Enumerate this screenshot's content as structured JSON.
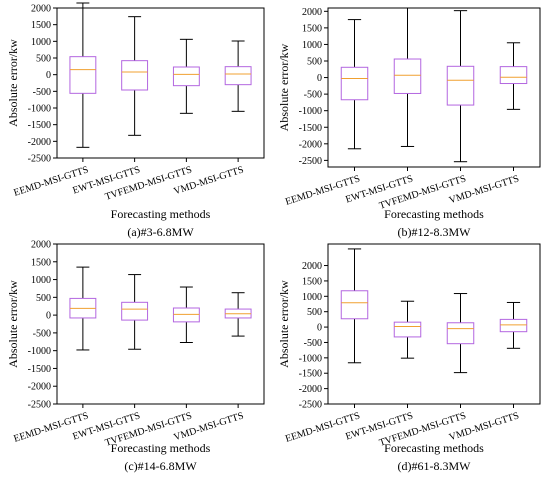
{
  "chart_data": [
    {
      "type": "box",
      "caption": "(a)#3-6.8MW",
      "xlabel": "Forecasting methods",
      "ylabel": "Absolute error/kw",
      "ylim": [
        -2500,
        2000
      ],
      "yticks": [
        2000,
        1500,
        1000,
        500,
        0,
        -500,
        -1000,
        -1500,
        -2000,
        -2500
      ],
      "categories": [
        "EEMD-MSI-GTTS",
        "EWT-MSI-GTTS",
        "TVFEMD-MSI-GTTS",
        "VMD-MSI-GTTS"
      ],
      "boxes": [
        {
          "whisker_low": -2180,
          "q1": -560,
          "median": 150,
          "q3": 540,
          "whisker_high": 2150
        },
        {
          "whisker_low": -1820,
          "q1": -460,
          "median": 80,
          "q3": 420,
          "whisker_high": 1740
        },
        {
          "whisker_low": -1160,
          "q1": -330,
          "median": 10,
          "q3": 230,
          "whisker_high": 1060
        },
        {
          "whisker_low": -1100,
          "q1": -300,
          "median": 20,
          "q3": 240,
          "whisker_high": 1010
        }
      ]
    },
    {
      "type": "box",
      "caption": "(b)#12-8.3MW",
      "xlabel": "Forecasting methods",
      "ylabel": "Absolute error/kw",
      "ylim": [
        -2700,
        2100
      ],
      "yticks": [
        2000,
        1500,
        1000,
        500,
        0,
        -500,
        -1000,
        -1500,
        -2000,
        -2500
      ],
      "categories": [
        "EEMD-MSI-GTTS",
        "EWT-MSI-GTTS",
        "TVFEMD-MSI-GTTS",
        "VMD-MSI-GTTS"
      ],
      "boxes": [
        {
          "whisker_low": -2150,
          "q1": -670,
          "median": -30,
          "q3": 310,
          "whisker_high": 1750
        },
        {
          "whisker_low": -2080,
          "q1": -480,
          "median": 70,
          "q3": 560,
          "whisker_high": 2100
        },
        {
          "whisker_low": -2540,
          "q1": -830,
          "median": -80,
          "q3": 340,
          "whisker_high": 2020
        },
        {
          "whisker_low": -960,
          "q1": -180,
          "median": 10,
          "q3": 330,
          "whisker_high": 1050
        }
      ]
    },
    {
      "type": "box",
      "caption": "(c)#14-6.8MW",
      "xlabel": "Forecasting methods",
      "ylabel": "Absolute error/kw",
      "ylim": [
        -2500,
        2000
      ],
      "yticks": [
        2000,
        1500,
        1000,
        500,
        0,
        -500,
        -1000,
        -1500,
        -2000,
        -2500
      ],
      "categories": [
        "EEMD-MSI-GTTS",
        "EWT-MSI-GTTS",
        "TVFEMD-MSI-GTTS",
        "VMD-MSI-GTTS"
      ],
      "boxes": [
        {
          "whisker_low": -980,
          "q1": -80,
          "median": 190,
          "q3": 470,
          "whisker_high": 1350
        },
        {
          "whisker_low": -960,
          "q1": -140,
          "median": 170,
          "q3": 360,
          "whisker_high": 1140
        },
        {
          "whisker_low": -770,
          "q1": -190,
          "median": 20,
          "q3": 200,
          "whisker_high": 790
        },
        {
          "whisker_low": -590,
          "q1": -80,
          "median": 40,
          "q3": 170,
          "whisker_high": 630
        }
      ]
    },
    {
      "type": "box",
      "caption": "(d)#61-8.3MW",
      "xlabel": "Forecasting methods",
      "ylabel": "Absolute error/kw",
      "ylim": [
        -2500,
        2700
      ],
      "yticks": [
        2000,
        1500,
        1000,
        500,
        0,
        -500,
        -1000,
        -1500,
        -2000,
        -2500
      ],
      "categories": [
        "EEMD-MSI-GTTS",
        "EWT-MSI-GTTS",
        "TVFEMD-MSI-GTTS",
        "VMD-MSI-GTTS"
      ],
      "boxes": [
        {
          "whisker_low": -1160,
          "q1": 270,
          "median": 790,
          "q3": 1180,
          "whisker_high": 2540
        },
        {
          "whisker_low": -1010,
          "q1": -320,
          "median": 20,
          "q3": 160,
          "whisker_high": 840
        },
        {
          "whisker_low": -1480,
          "q1": -540,
          "median": -50,
          "q3": 140,
          "whisker_high": 1090
        },
        {
          "whisker_low": -690,
          "q1": -150,
          "median": 70,
          "q3": 250,
          "whisker_high": 800
        }
      ]
    }
  ],
  "style": {
    "box_color": "#b366e0",
    "median_color": "#f0a030",
    "whisker_color": "#000000"
  }
}
